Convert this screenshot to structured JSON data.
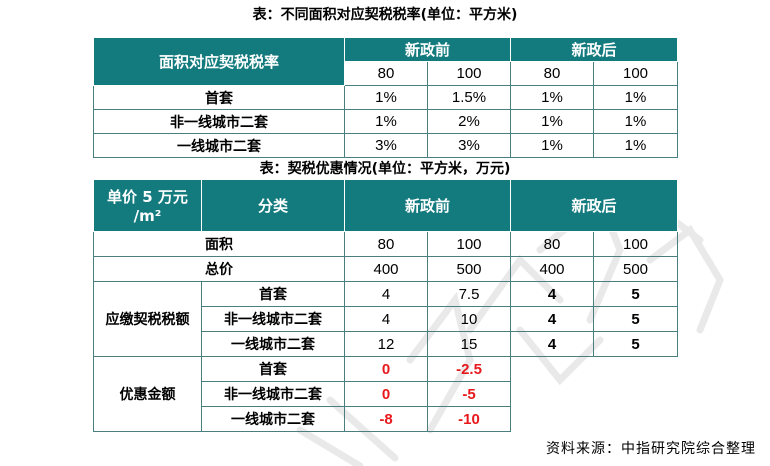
{
  "table1": {
    "title": "表：不同面积对应契税税率(单位：平方米)",
    "header_label": "面积对应契税税率",
    "before_label": "新政前",
    "after_label": "新政后",
    "areas": [
      "80",
      "100",
      "80",
      "100"
    ],
    "rows": [
      {
        "label": "首套",
        "values": [
          "1%",
          "1.5%",
          "1%",
          "1%"
        ]
      },
      {
        "label": "非一线城市二套",
        "values": [
          "1%",
          "2%",
          "1%",
          "1%"
        ]
      },
      {
        "label": "一线城市二套",
        "values": [
          "3%",
          "3%",
          "1%",
          "1%"
        ]
      }
    ]
  },
  "table2": {
    "title": "表：契税优惠情况(单位：平方米，万元)",
    "unit_label_line1": "单价 5 万元",
    "unit_label_line2": "/m²",
    "category_label": "分类",
    "before_label": "新政前",
    "after_label": "新政后",
    "area_row": {
      "label": "面积",
      "values": [
        "80",
        "100",
        "80",
        "100"
      ]
    },
    "total_row": {
      "label": "总价",
      "values": [
        "400",
        "500",
        "400",
        "500"
      ]
    },
    "tax_group": {
      "label": "应缴契税税额",
      "rows": [
        {
          "label": "首套",
          "values": [
            "4",
            "7.5",
            "4",
            "5"
          ]
        },
        {
          "label": "非一线城市二套",
          "values": [
            "4",
            "10",
            "4",
            "5"
          ]
        },
        {
          "label": "一线城市二套",
          "values": [
            "12",
            "15",
            "4",
            "5"
          ]
        }
      ]
    },
    "discount_group": {
      "label": "优惠金额",
      "rows": [
        {
          "label": "首套",
          "values": [
            "0",
            "-2.5"
          ]
        },
        {
          "label": "非一线城市二套",
          "values": [
            "0",
            "-5"
          ]
        },
        {
          "label": "一线城市二套",
          "values": [
            "-8",
            "-10"
          ]
        }
      ]
    }
  },
  "source": "资料来源：中指研究院综合整理",
  "colors": {
    "header_bg": "#137a7e",
    "header_text": "#ffffff",
    "negative": "#e8191d",
    "border": "#4a7f80"
  }
}
